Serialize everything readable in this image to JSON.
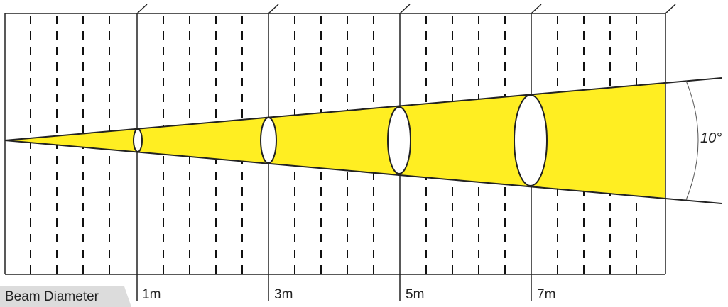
{
  "legend": {
    "beam_diameter_label": "Beam Diameter"
  },
  "beam": {
    "angle_label": "10°",
    "fill_color": "#ffee22"
  },
  "distances": [
    {
      "label": "1m"
    },
    {
      "label": "3m"
    },
    {
      "label": "5m"
    },
    {
      "label": "7m"
    }
  ]
}
